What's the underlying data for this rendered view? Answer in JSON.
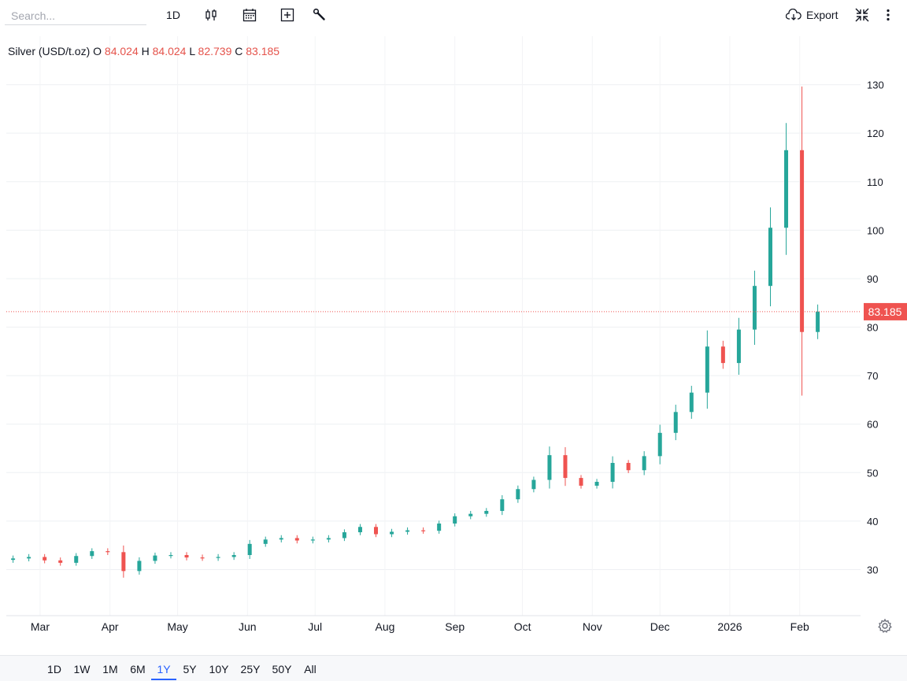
{
  "toolbar": {
    "search_placeholder": "Search...",
    "interval": "1D",
    "export_label": "Export"
  },
  "legend": {
    "symbol": "Silver (USD/t.oz)",
    "o_label": "O",
    "o": "84.024",
    "h_label": "H",
    "h": "84.024",
    "l_label": "L",
    "l": "82.739",
    "c_label": "C",
    "c": "83.185"
  },
  "ranges": [
    "1D",
    "1W",
    "1M",
    "6M",
    "1Y",
    "5Y",
    "10Y",
    "25Y",
    "50Y",
    "All"
  ],
  "active_range": "1Y",
  "colors": {
    "up": "#26a69a",
    "down": "#ef5350",
    "price_line": "#ef5350",
    "active": "#2962ff"
  },
  "chart_data": {
    "type": "candlestick",
    "title": "Silver (USD/t.oz)",
    "last_price": 83.185,
    "last_price_label": "83.185",
    "y_ticks": [
      30,
      40,
      50,
      60,
      70,
      80,
      90,
      100,
      110,
      120,
      130
    ],
    "ylim": [
      20.5,
      140
    ],
    "x_ticks": [
      {
        "label": "Mar",
        "x": "2025-03-01"
      },
      {
        "label": "Apr",
        "x": "2025-04-01"
      },
      {
        "label": "May",
        "x": "2025-05-01"
      },
      {
        "label": "Jun",
        "x": "2025-06-01"
      },
      {
        "label": "Jul",
        "x": "2025-07-01"
      },
      {
        "label": "Aug",
        "x": "2025-08-01"
      },
      {
        "label": "Sep",
        "x": "2025-09-01"
      },
      {
        "label": "Oct",
        "x": "2025-10-01"
      },
      {
        "label": "Nov",
        "x": "2025-11-01"
      },
      {
        "label": "Dec",
        "x": "2025-12-01"
      },
      {
        "label": "2026",
        "x": "2026-01-01"
      },
      {
        "label": "Feb",
        "x": "2026-02-01"
      }
    ],
    "xlim": [
      "2025-02-14",
      "2026-02-28"
    ],
    "grid": true,
    "series": [
      {
        "date": "2025-02-17",
        "c": 32.3
      },
      {
        "date": "2025-02-24",
        "c": 32.6
      },
      {
        "date": "2025-03-03",
        "c": 31.9
      },
      {
        "date": "2025-03-10",
        "c": 31.4
      },
      {
        "date": "2025-03-17",
        "c": 32.8
      },
      {
        "date": "2025-03-24",
        "c": 33.8
      },
      {
        "date": "2025-03-31",
        "c": 33.6
      },
      {
        "date": "2025-04-07",
        "c": 29.7
      },
      {
        "date": "2025-04-14",
        "c": 31.8
      },
      {
        "date": "2025-04-21",
        "c": 32.9
      },
      {
        "date": "2025-04-28",
        "c": 33.0
      },
      {
        "date": "2025-05-05",
        "c": 32.5
      },
      {
        "date": "2025-05-12",
        "c": 32.4
      },
      {
        "date": "2025-05-19",
        "c": 32.6
      },
      {
        "date": "2025-05-26",
        "c": 33.0
      },
      {
        "date": "2025-06-02",
        "c": 35.3
      },
      {
        "date": "2025-06-09",
        "c": 36.2
      },
      {
        "date": "2025-06-16",
        "c": 36.5
      },
      {
        "date": "2025-06-23",
        "c": 36.0
      },
      {
        "date": "2025-06-30",
        "c": 36.2
      },
      {
        "date": "2025-07-07",
        "c": 36.5
      },
      {
        "date": "2025-07-14",
        "c": 37.7
      },
      {
        "date": "2025-07-21",
        "c": 38.8
      },
      {
        "date": "2025-07-28",
        "c": 37.3
      },
      {
        "date": "2025-08-04",
        "c": 37.8
      },
      {
        "date": "2025-08-11",
        "c": 38.1
      },
      {
        "date": "2025-08-18",
        "c": 38.0
      },
      {
        "date": "2025-08-25",
        "c": 39.5
      },
      {
        "date": "2025-09-01",
        "c": 41.0
      },
      {
        "date": "2025-09-08",
        "c": 41.5
      },
      {
        "date": "2025-09-15",
        "c": 42.1
      },
      {
        "date": "2025-09-22",
        "c": 44.5
      },
      {
        "date": "2025-09-29",
        "c": 46.6
      },
      {
        "date": "2025-10-06",
        "c": 48.5
      },
      {
        "date": "2025-10-13",
        "c": 53.6
      },
      {
        "date": "2025-10-20",
        "c": 48.9
      },
      {
        "date": "2025-10-27",
        "c": 47.3
      },
      {
        "date": "2025-11-03",
        "c": 48.1
      },
      {
        "date": "2025-11-10",
        "c": 52.0
      },
      {
        "date": "2025-11-17",
        "c": 50.5
      },
      {
        "date": "2025-11-24",
        "c": 53.4
      },
      {
        "date": "2025-12-01",
        "c": 58.2
      },
      {
        "date": "2025-12-08",
        "c": 62.5
      },
      {
        "date": "2025-12-15",
        "c": 66.5
      },
      {
        "date": "2025-12-22",
        "c": 76.0
      },
      {
        "date": "2025-12-29",
        "c": 72.6
      },
      {
        "date": "2026-01-05",
        "c": 79.5
      },
      {
        "date": "2026-01-12",
        "c": 88.5
      },
      {
        "date": "2026-01-19",
        "c": 100.5
      },
      {
        "date": "2026-01-26",
        "c": 116.5
      },
      {
        "date": "2026-02-02",
        "c": 79.0
      },
      {
        "date": "2026-02-09",
        "c": 83.2
      }
    ]
  }
}
